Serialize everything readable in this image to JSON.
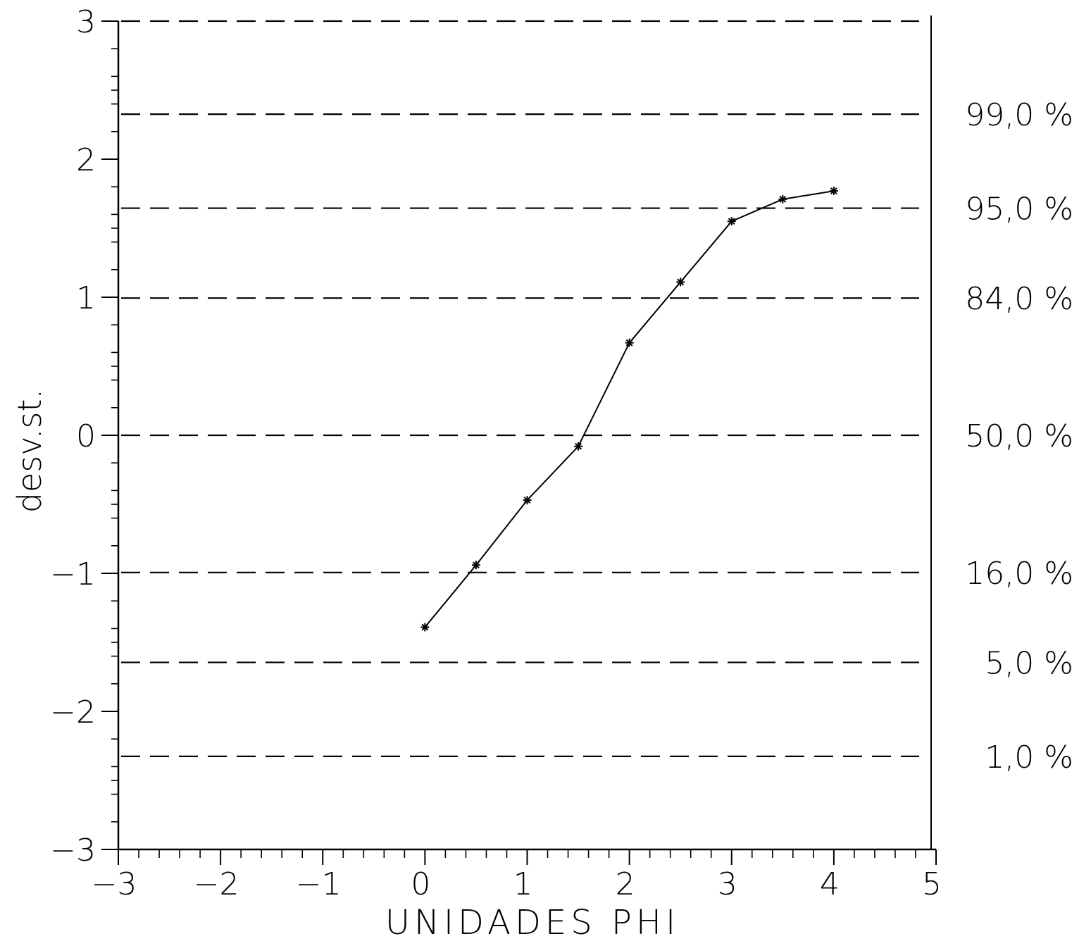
{
  "chart_data": {
    "type": "line",
    "title": "",
    "xlabel": "UNIDADES PHI",
    "ylabel": "desv.st.",
    "xlim": [
      -3,
      5
    ],
    "ylim": [
      -3,
      3
    ],
    "x_ticks": [
      "−3",
      "−2",
      "−1",
      "0",
      "1",
      "2",
      "3",
      "4",
      "5"
    ],
    "y_ticks": [
      "−3",
      "−2",
      "−1",
      "0",
      "1",
      "2",
      "3"
    ],
    "grid": "dashed horizontal reference lines at percentile positions",
    "reference_lines": [
      {
        "y": 3.0,
        "label": ""
      },
      {
        "y": 2.326,
        "label": "99,0 %"
      },
      {
        "y": 1.645,
        "label": "95,0 %"
      },
      {
        "y": 0.994,
        "label": "84,0 %"
      },
      {
        "y": 0.0,
        "label": "50,0 %"
      },
      {
        "y": -0.994,
        "label": "16,0 %"
      },
      {
        "y": -1.645,
        "label": "5,0 %"
      },
      {
        "y": -2.326,
        "label": "1,0 %"
      }
    ],
    "series": [
      {
        "marker": "asterisk",
        "color": "#000000",
        "x": [
          0,
          0.5,
          1.0,
          1.5,
          2.0,
          2.5,
          3.0,
          3.5,
          4.0
        ],
        "y": [
          -1.39,
          -0.94,
          -0.47,
          -0.08,
          0.67,
          1.11,
          1.55,
          1.71,
          1.77
        ]
      }
    ]
  }
}
